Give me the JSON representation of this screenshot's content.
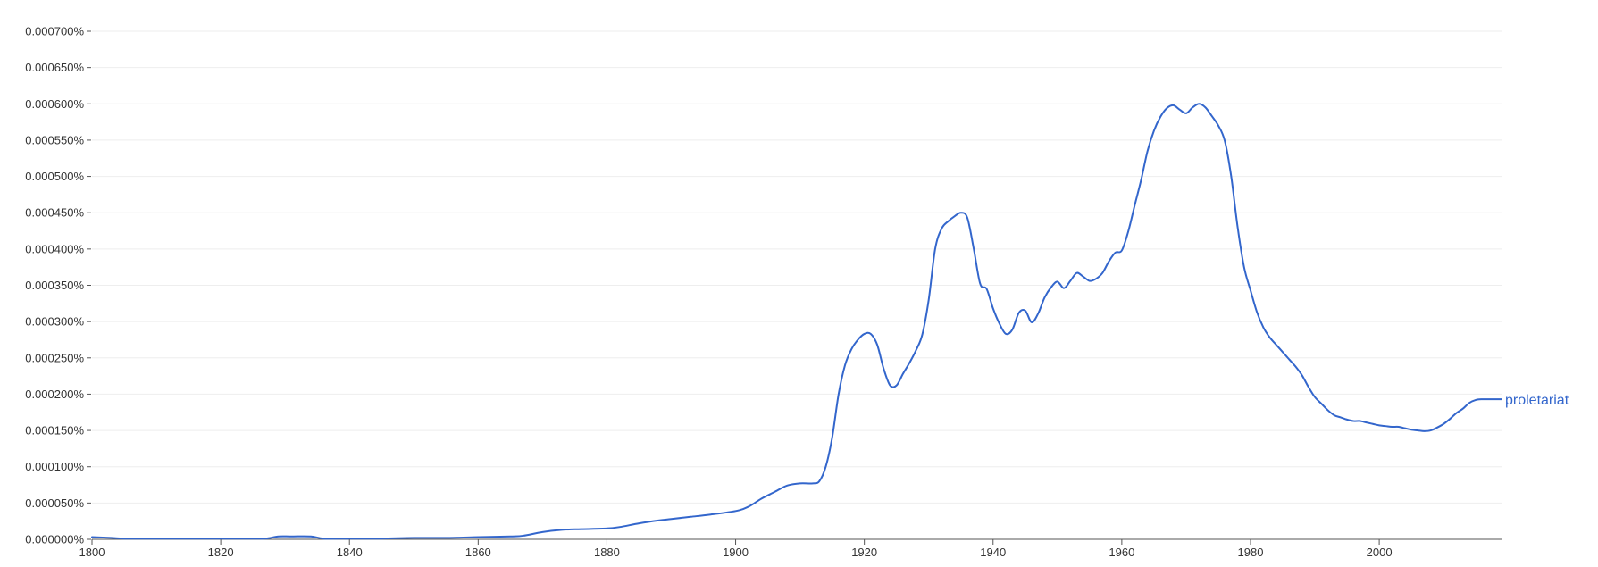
{
  "chart_data": {
    "type": "line",
    "title": "",
    "xlabel": "",
    "ylabel": "",
    "xlim": [
      1800,
      2019
    ],
    "ylim": [
      0,
      0.0007
    ],
    "grid": true,
    "line_color": "#3366cc",
    "x_ticks": [
      1800,
      1820,
      1840,
      1860,
      1880,
      1900,
      1920,
      1940,
      1960,
      1980,
      2000
    ],
    "x_tick_labels": [
      "1800",
      "1820",
      "1840",
      "1860",
      "1880",
      "1900",
      "1920",
      "1940",
      "1960",
      "1980",
      "2000"
    ],
    "y_ticks": [
      0,
      5e-05,
      0.0001,
      0.00015,
      0.0002,
      0.00025,
      0.0003,
      0.00035,
      0.0004,
      0.00045,
      0.0005,
      0.00055,
      0.0006,
      0.00065,
      0.0007
    ],
    "y_tick_labels": [
      "0.000000%",
      "0.000050%",
      "0.000100%",
      "0.000150%",
      "0.000200%",
      "0.000250%",
      "0.000300%",
      "0.000350%",
      "0.000400%",
      "0.000450%",
      "0.000500%",
      "0.000550%",
      "0.000600%",
      "0.000650%",
      "0.000700%"
    ],
    "series": [
      {
        "name": "proletariat",
        "points": [
          [
            1800,
            3e-06
          ],
          [
            1803,
            2e-06
          ],
          [
            1805,
            1e-06
          ],
          [
            1810,
            1e-06
          ],
          [
            1815,
            1e-06
          ],
          [
            1820,
            1e-06
          ],
          [
            1825,
            1e-06
          ],
          [
            1827,
            1e-06
          ],
          [
            1829,
            4e-06
          ],
          [
            1831,
            4e-06
          ],
          [
            1834,
            4e-06
          ],
          [
            1836,
            1e-06
          ],
          [
            1840,
            1e-06
          ],
          [
            1845,
            1e-06
          ],
          [
            1850,
            2e-06
          ],
          [
            1855,
            2e-06
          ],
          [
            1860,
            3e-06
          ],
          [
            1865,
            4e-06
          ],
          [
            1867,
            5e-06
          ],
          [
            1870,
            1e-05
          ],
          [
            1873,
            1.3e-05
          ],
          [
            1876,
            1.4e-05
          ],
          [
            1880,
            1.5e-05
          ],
          [
            1882,
            1.7e-05
          ],
          [
            1885,
            2.2e-05
          ],
          [
            1888,
            2.6e-05
          ],
          [
            1890,
            2.8e-05
          ],
          [
            1893,
            3.1e-05
          ],
          [
            1896,
            3.4e-05
          ],
          [
            1900,
            3.9e-05
          ],
          [
            1902,
            4.5e-05
          ],
          [
            1904,
            5.6e-05
          ],
          [
            1906,
            6.5e-05
          ],
          [
            1908,
            7.4e-05
          ],
          [
            1910,
            7.7e-05
          ],
          [
            1912,
            7.7e-05
          ],
          [
            1913,
            8e-05
          ],
          [
            1914,
            0.0001
          ],
          [
            1915,
            0.00014
          ],
          [
            1916,
            0.0002
          ],
          [
            1917,
            0.00024
          ],
          [
            1918,
            0.000262
          ],
          [
            1919,
            0.000275
          ],
          [
            1920,
            0.000283
          ],
          [
            1921,
            0.000283
          ],
          [
            1922,
            0.000268
          ],
          [
            1923,
            0.000235
          ],
          [
            1924,
            0.000212
          ],
          [
            1925,
            0.000212
          ],
          [
            1926,
            0.000228
          ],
          [
            1927,
            0.000243
          ],
          [
            1928,
            0.00026
          ],
          [
            1929,
            0.000282
          ],
          [
            1930,
            0.00033
          ],
          [
            1931,
            0.0004
          ],
          [
            1932,
            0.000428
          ],
          [
            1933,
            0.000438
          ],
          [
            1934,
            0.000445
          ],
          [
            1935,
            0.00045
          ],
          [
            1936,
            0.000443
          ],
          [
            1937,
            0.0004
          ],
          [
            1938,
            0.000352
          ],
          [
            1939,
            0.000345
          ],
          [
            1940,
            0.000318
          ],
          [
            1941,
            0.000297
          ],
          [
            1942,
            0.000283
          ],
          [
            1943,
            0.000289
          ],
          [
            1944,
            0.000312
          ],
          [
            1945,
            0.000315
          ],
          [
            1946,
            0.000299
          ],
          [
            1947,
            0.000311
          ],
          [
            1948,
            0.000333
          ],
          [
            1949,
            0.000347
          ],
          [
            1950,
            0.000355
          ],
          [
            1951,
            0.000346
          ],
          [
            1952,
            0.000356
          ],
          [
            1953,
            0.000367
          ],
          [
            1954,
            0.000362
          ],
          [
            1955,
            0.000356
          ],
          [
            1956,
            0.000359
          ],
          [
            1957,
            0.000367
          ],
          [
            1958,
            0.000383
          ],
          [
            1959,
            0.000395
          ],
          [
            1960,
            0.000398
          ],
          [
            1961,
            0.000424
          ],
          [
            1962,
            0.00046
          ],
          [
            1963,
            0.000495
          ],
          [
            1964,
            0.000535
          ],
          [
            1965,
            0.000563
          ],
          [
            1966,
            0.000582
          ],
          [
            1967,
            0.000594
          ],
          [
            1968,
            0.000598
          ],
          [
            1969,
            0.000592
          ],
          [
            1970,
            0.000587
          ],
          [
            1971,
            0.000595
          ],
          [
            1972,
            0.0006
          ],
          [
            1973,
            0.000595
          ],
          [
            1974,
            0.000583
          ],
          [
            1975,
            0.00057
          ],
          [
            1976,
            0.000549
          ],
          [
            1977,
            0.0005
          ],
          [
            1978,
            0.00043
          ],
          [
            1979,
            0.000375
          ],
          [
            1980,
            0.000343
          ],
          [
            1981,
            0.000313
          ],
          [
            1982,
            0.000292
          ],
          [
            1983,
            0.000278
          ],
          [
            1984,
            0.000268
          ],
          [
            1985,
            0.000258
          ],
          [
            1986,
            0.000248
          ],
          [
            1987,
            0.000238
          ],
          [
            1988,
            0.000226
          ],
          [
            1989,
            0.00021
          ],
          [
            1990,
            0.000196
          ],
          [
            1991,
            0.000187
          ],
          [
            1992,
            0.000178
          ],
          [
            1993,
            0.000171
          ],
          [
            1994,
            0.000168
          ],
          [
            1995,
            0.000165
          ],
          [
            1996,
            0.000163
          ],
          [
            1997,
            0.000163
          ],
          [
            1998,
            0.000161
          ],
          [
            1999,
            0.000159
          ],
          [
            2000,
            0.000157
          ],
          [
            2001,
            0.000156
          ],
          [
            2002,
            0.000155
          ],
          [
            2003,
            0.000155
          ],
          [
            2004,
            0.000153
          ],
          [
            2005,
            0.000151
          ],
          [
            2006,
            0.00015
          ],
          [
            2007,
            0.000149
          ],
          [
            2008,
            0.00015
          ],
          [
            2009,
            0.000154
          ],
          [
            2010,
            0.000159
          ],
          [
            2011,
            0.000166
          ],
          [
            2012,
            0.000174
          ],
          [
            2013,
            0.00018
          ],
          [
            2014,
            0.000188
          ],
          [
            2015,
            0.000192
          ],
          [
            2016,
            0.000193
          ],
          [
            2017,
            0.000193
          ],
          [
            2018,
            0.000193
          ],
          [
            2019,
            0.000193
          ]
        ]
      }
    ]
  }
}
